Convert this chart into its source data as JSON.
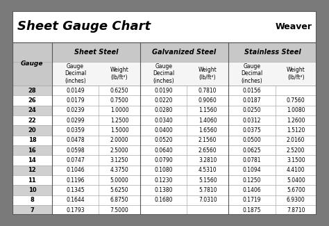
{
  "title": "Sheet Gauge Chart",
  "bg_outer": "#7a7a7a",
  "bg_title": "#ffffff",
  "bg_table": "#ffffff",
  "bg_header": "#c8c8c8",
  "bg_row_alt": "#d0d0d0",
  "bg_row_white": "#ffffff",
  "gauges": [
    28,
    26,
    24,
    22,
    20,
    18,
    16,
    14,
    12,
    11,
    10,
    8,
    7
  ],
  "sheet_steel_dec": [
    "0.0149",
    "0.0179",
    "0.0239",
    "0.0299",
    "0.0359",
    "0.0478",
    "0.0598",
    "0.0747",
    "0.1046",
    "0.1196",
    "0.1345",
    "0.1644",
    "0.1793"
  ],
  "sheet_steel_wt": [
    "0.6250",
    "0.7500",
    "1.0000",
    "1.2500",
    "1.5000",
    "2.0000",
    "2.5000",
    "3.1250",
    "4.3750",
    "5.0000",
    "5.6250",
    "6.8750",
    "7.5000"
  ],
  "galv_dec": [
    "0.0190",
    "0.0220",
    "0.0280",
    "0.0340",
    "0.0400",
    "0.0520",
    "0.0640",
    "0.0790",
    "0.1080",
    "0.1230",
    "0.1380",
    "0.1680",
    ""
  ],
  "galv_wt": [
    "0.7810",
    "0.9060",
    "1.1560",
    "1.4060",
    "1.6560",
    "2.1560",
    "2.6560",
    "3.2810",
    "4.5310",
    "5.1560",
    "5.7810",
    "7.0310",
    ""
  ],
  "stain_dec": [
    "0.0156",
    "0.0187",
    "0.0250",
    "0.0312",
    "0.0375",
    "0.0500",
    "0.0625",
    "0.0781",
    "0.1094",
    "0.1250",
    "0.1406",
    "0.1719",
    "0.1875"
  ],
  "stain_wt": [
    "",
    "0.7560",
    "1.0080",
    "1.2600",
    "1.5120",
    "2.0160",
    "2.5200",
    "3.1500",
    "4.4100",
    "5.0400",
    "5.6700",
    "6.9300",
    "7.8710"
  ],
  "col_groups": [
    "Sheet Steel",
    "Galvanized Steel",
    "Stainless Steel"
  ],
  "grid_color": "#aaaaaa",
  "border_color": "#555555",
  "text_data_size": 5.5,
  "text_header_size": 7.0,
  "text_subheader_size": 5.5,
  "text_title_size": 13.0,
  "text_gauge_col_size": 6.5,
  "weaver_size": 9.0
}
